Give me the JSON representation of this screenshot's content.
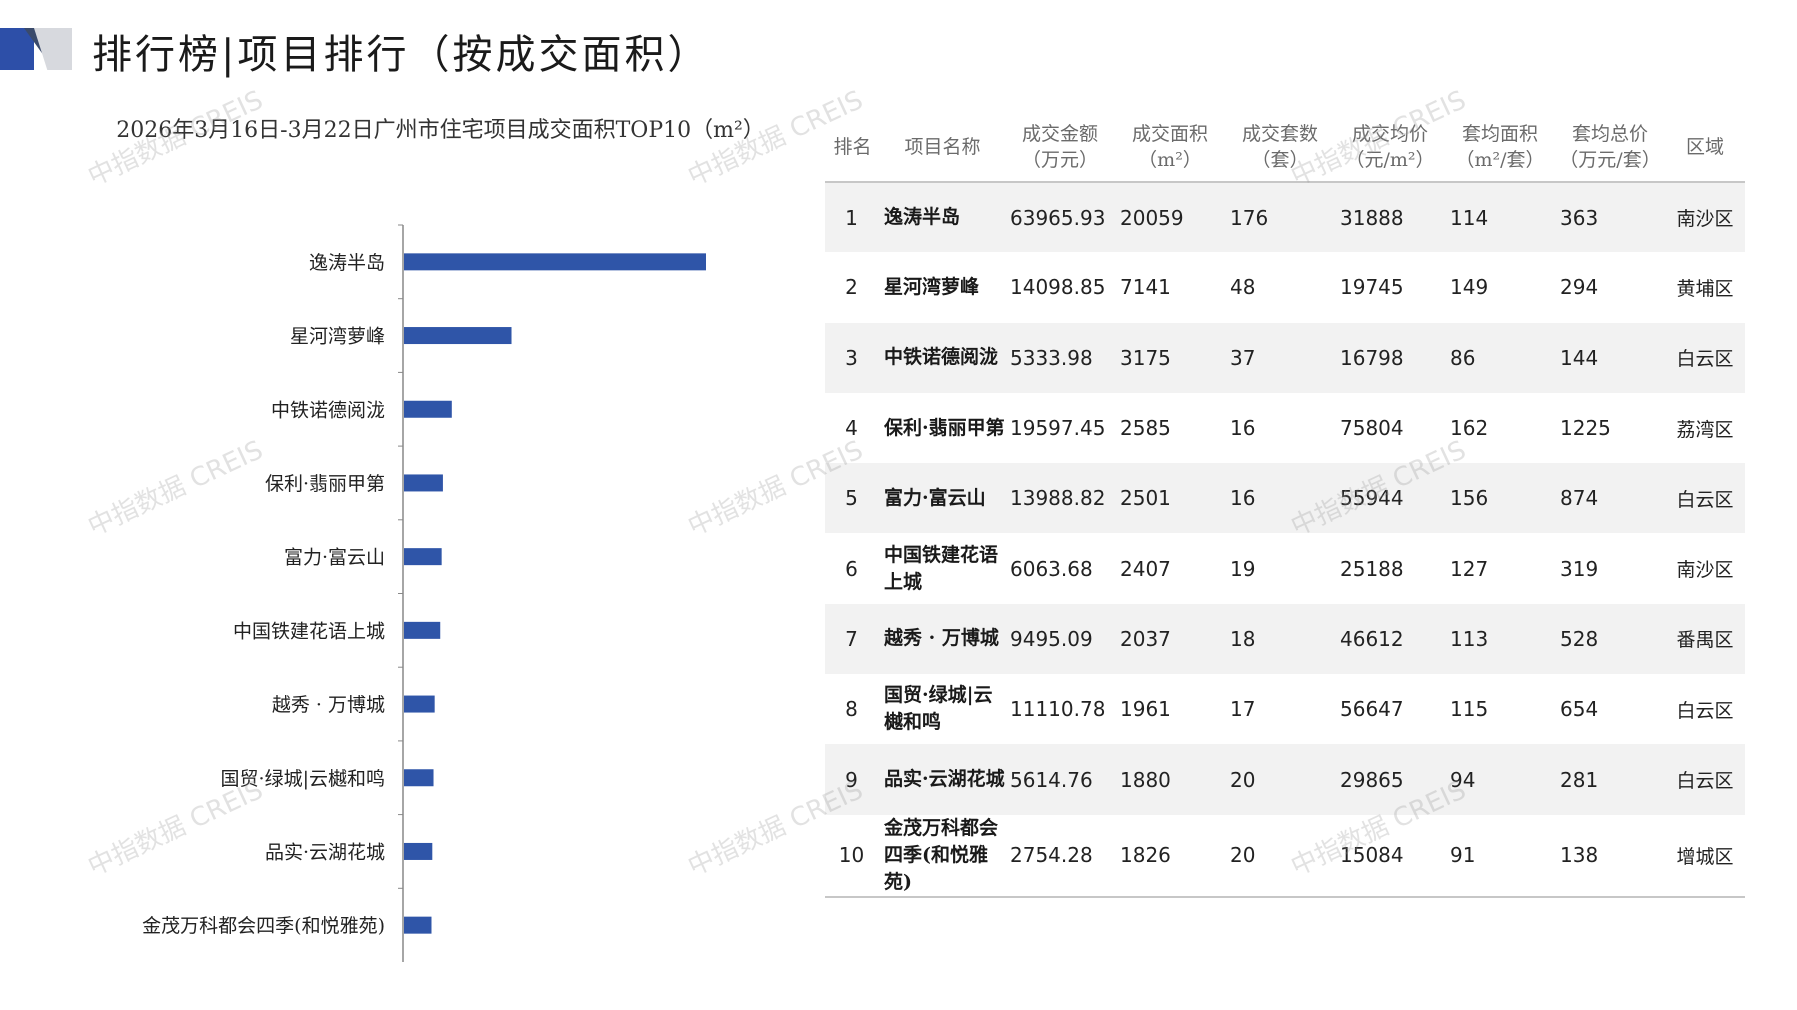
{
  "header": {
    "title": "排行榜|项目排行（按成交面积）"
  },
  "watermark": {
    "text": "中指数据 CREIS"
  },
  "chart_data": {
    "type": "bar",
    "orientation": "horizontal",
    "title": "2026年3月16日-3月22日广州市住宅项目成交面积TOP10（m²）",
    "categories": [
      "逸涛半岛",
      "星河湾萝峰",
      "中铁诺德阅泷",
      "保利·翡丽甲第",
      "富力·富云山",
      "中国铁建花语上城",
      "越秀  · 万博城",
      "国贸·绿城|云樾和鸣",
      "品实·云湖花城",
      "金茂万科都会四季(和悦雅苑)"
    ],
    "values": [
      20059,
      7141,
      3175,
      2585,
      2501,
      2407,
      2037,
      1961,
      1880,
      1826
    ],
    "bar_color": "#2f55a8",
    "grid": false,
    "legend": "none"
  },
  "table": {
    "headers": [
      [
        "排名"
      ],
      [
        "项目名称"
      ],
      [
        "成交金额",
        "（万元）"
      ],
      [
        "成交面积",
        "（m²）"
      ],
      [
        "成交套数",
        "（套）"
      ],
      [
        "成交均价",
        "（元/m²）"
      ],
      [
        "套均面积",
        "（m²/套）"
      ],
      [
        "套均总价",
        "（万元/套）"
      ],
      [
        "区域"
      ]
    ],
    "rows": [
      [
        "1",
        "逸涛半岛",
        "63965.93",
        "20059",
        "176",
        "31888",
        "114",
        "363",
        "南沙区"
      ],
      [
        "2",
        "星河湾萝峰",
        "14098.85",
        "7141",
        "48",
        "19745",
        "149",
        "294",
        "黄埔区"
      ],
      [
        "3",
        "中铁诺德阅泷",
        "5333.98",
        "3175",
        "37",
        "16798",
        "86",
        "144",
        "白云区"
      ],
      [
        "4",
        "保利·翡丽甲第",
        "19597.45",
        "2585",
        "16",
        "75804",
        "162",
        "1225",
        "荔湾区"
      ],
      [
        "5",
        "富力·富云山",
        "13988.82",
        "2501",
        "16",
        "55944",
        "156",
        "874",
        "白云区"
      ],
      [
        "6",
        "中国铁建花语上城",
        "6063.68",
        "2407",
        "19",
        "25188",
        "127",
        "319",
        "南沙区"
      ],
      [
        "7",
        "越秀 · 万博城",
        "9495.09",
        "2037",
        "18",
        "46612",
        "113",
        "528",
        "番禺区"
      ],
      [
        "8",
        "国贸·绿城|云樾和鸣",
        "11110.78",
        "1961",
        "17",
        "56647",
        "115",
        "654",
        "白云区"
      ],
      [
        "9",
        "品实·云湖花城",
        "5614.76",
        "1880",
        "20",
        "29865",
        "94",
        "281",
        "白云区"
      ],
      [
        "10",
        "金茂万科都会四季(和悦雅苑)",
        "2754.28",
        "1826",
        "20",
        "15084",
        "91",
        "138",
        "增城区"
      ]
    ]
  }
}
